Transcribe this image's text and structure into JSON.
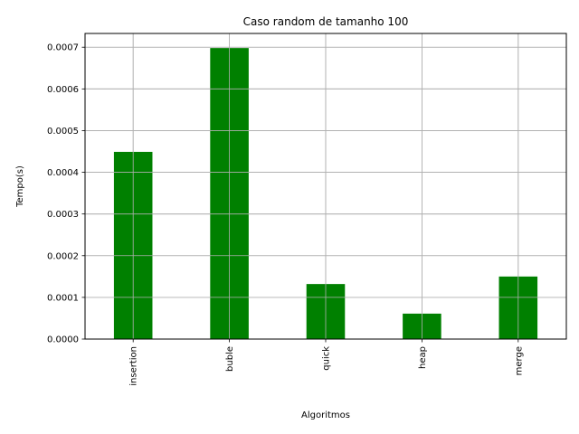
{
  "chart_data": {
    "type": "bar",
    "title": "Caso random de tamanho 100",
    "xlabel": "Algoritmos",
    "ylabel": "Tempo(s)",
    "categories": [
      "insertion",
      "buble",
      "quick",
      "heap",
      "merge"
    ],
    "values": [
      0.000449,
      0.000698,
      0.000132,
      6.1e-05,
      0.00015
    ],
    "ylim": [
      0,
      0.000733
    ],
    "yticks": [
      "0.0000",
      "0.0001",
      "0.0002",
      "0.0003",
      "0.0004",
      "0.0005",
      "0.0006",
      "0.0007"
    ],
    "grid": true,
    "bar_color": "#008000",
    "grid_color": "#b0b0b0"
  }
}
